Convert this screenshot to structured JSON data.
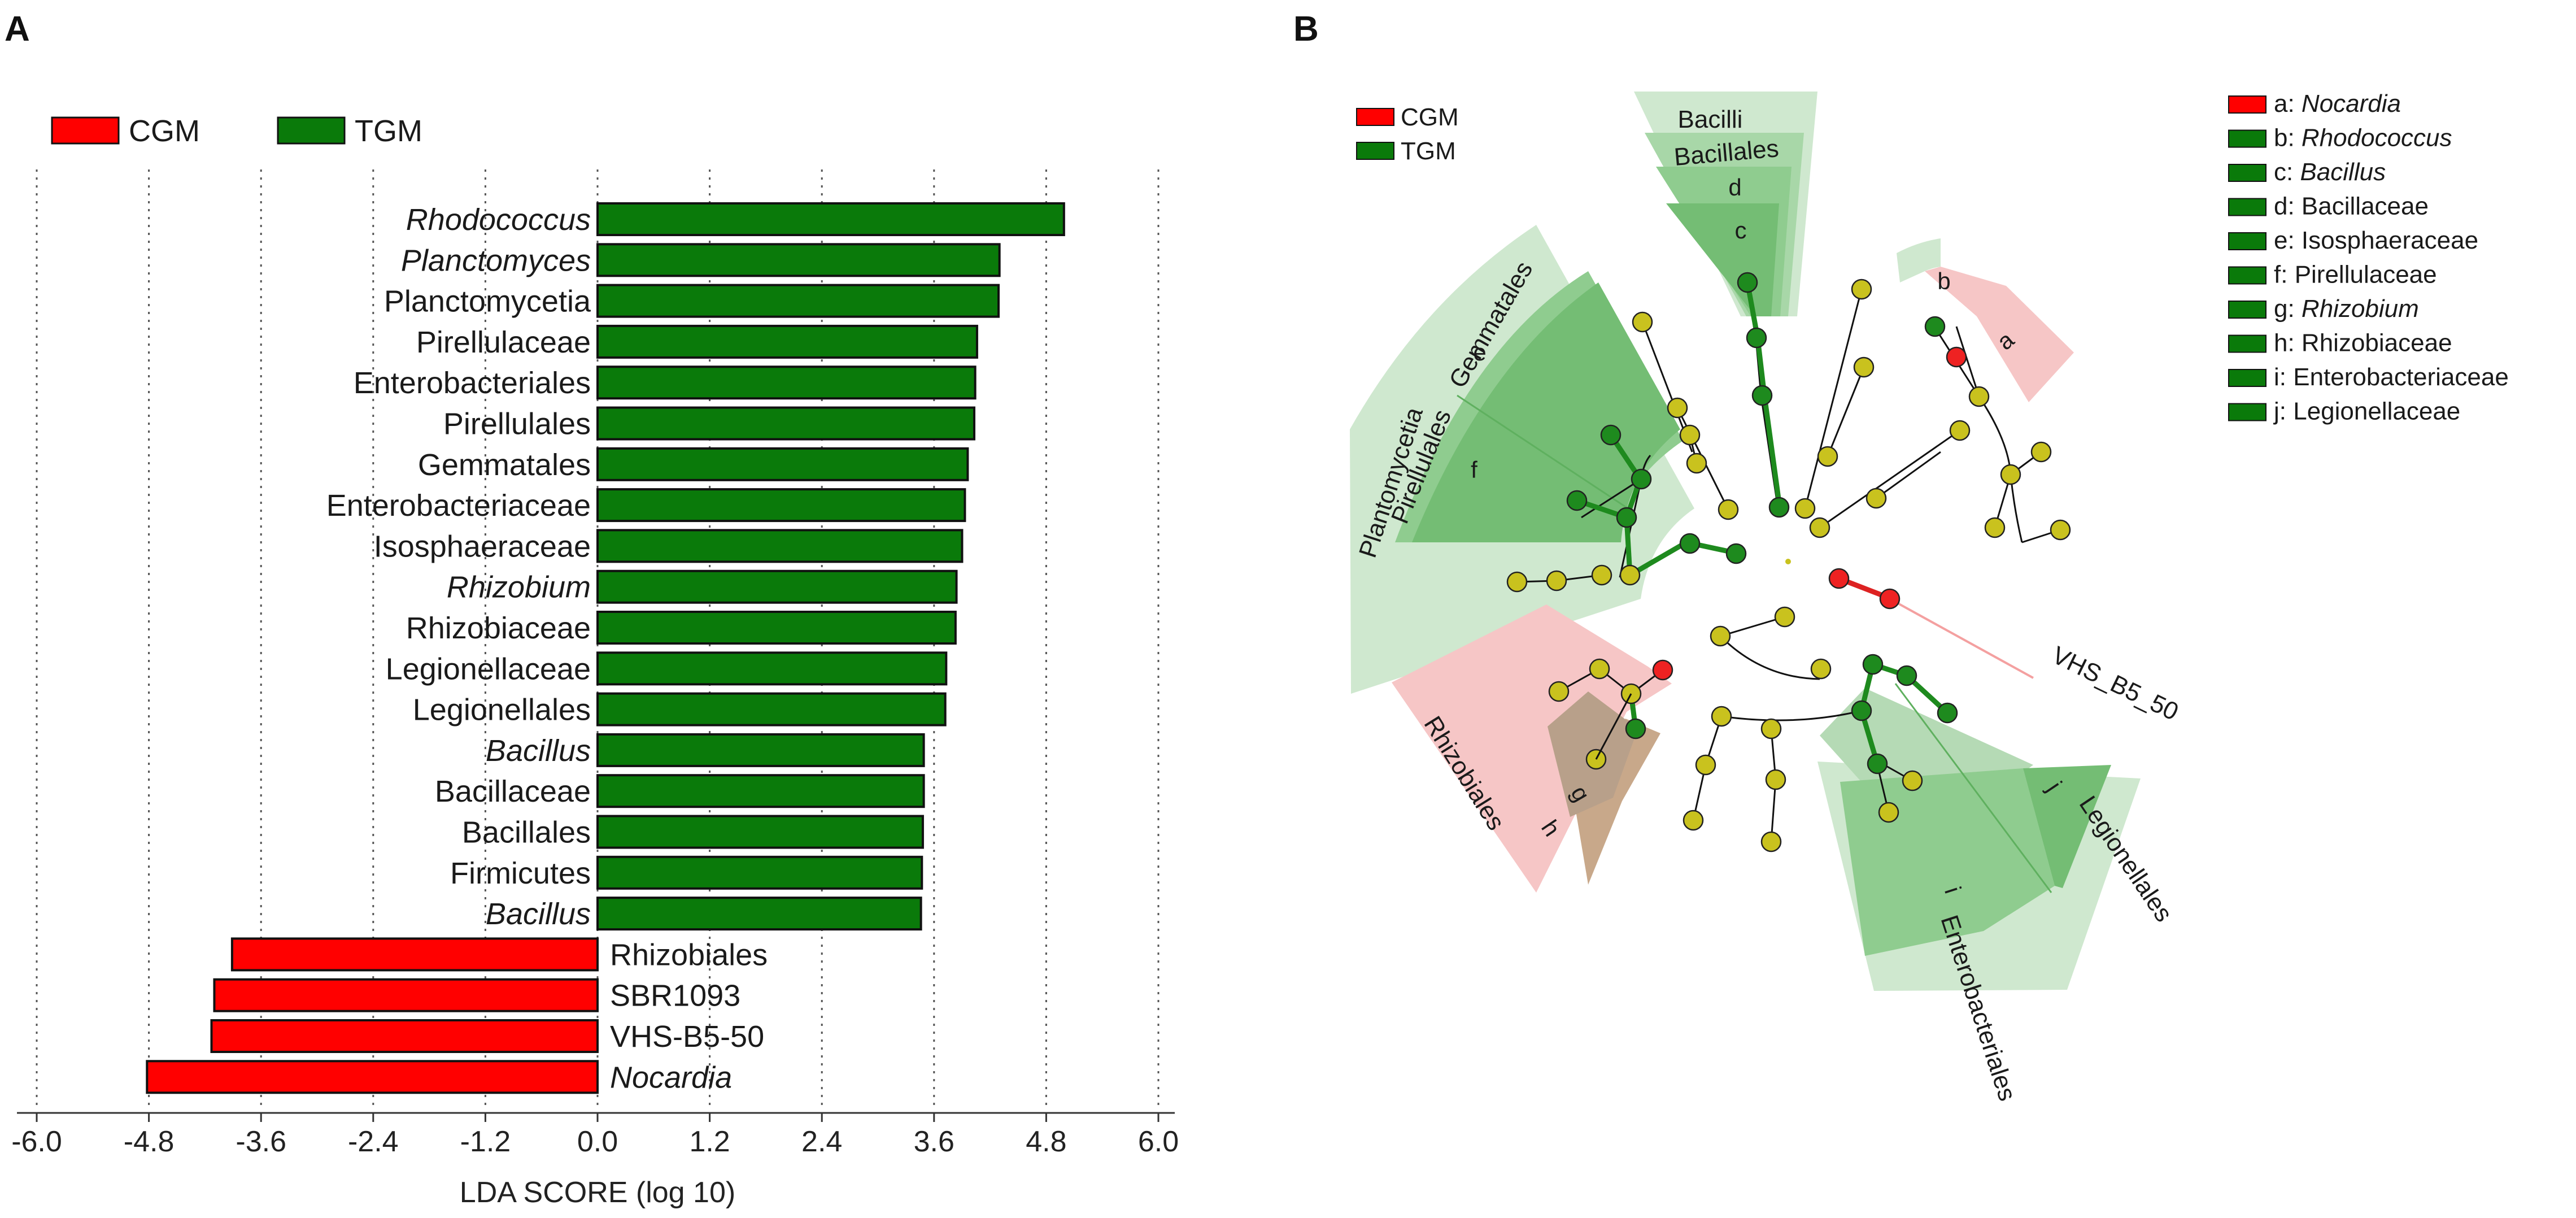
{
  "panel_a_letter": "A",
  "panel_b_letter": "B",
  "colors": {
    "CGM": "#ff0000",
    "TGM": "#0a7a0a",
    "bar_stroke": "#111111",
    "node_yellow": "#c9c21e",
    "node_green": "#1e8a1e",
    "node_red": "#ee2222"
  },
  "chart_data": [
    {
      "type": "bar",
      "orientation": "horizontal",
      "title": "",
      "xlabel": "LDA SCORE (log 10)",
      "ylabel": "",
      "xlim": [
        -6.0,
        6.0
      ],
      "xticks": [
        -6.0,
        -4.8,
        -3.6,
        -2.4,
        -1.2,
        0.0,
        1.2,
        2.4,
        3.6,
        4.8,
        6.0
      ],
      "xtick_labels": [
        "-6.0",
        "-4.8",
        "-3.6",
        "-2.4",
        "-1.2",
        "0.0",
        "1.2",
        "2.4",
        "3.6",
        "4.8",
        "6.0"
      ],
      "gridlines": "vertical dotted",
      "legend": [
        {
          "name": "CGM",
          "color": "#ff0000"
        },
        {
          "name": "TGM",
          "color": "#0a7a0a"
        }
      ],
      "categories": [
        "Rhodococcus",
        "Planctomyces",
        "Planctomycetia",
        "Pirellulaceae",
        "Enterobacteriales",
        "Pirellulales",
        "Gemmatales",
        "Enterobacteriaceae",
        "Isosphaeraceae",
        "Rhizobium",
        "Rhizobiaceae",
        "Legionellaceae",
        "Legionellales",
        "Bacillus",
        "Bacillaceae",
        "Bacillales",
        "Firmicutes",
        "Bacillus",
        "Rhizobiales",
        "SBR1093",
        "VHS-B5-50",
        "Nocardia"
      ],
      "italic": [
        true,
        true,
        false,
        false,
        false,
        false,
        false,
        false,
        false,
        true,
        false,
        false,
        false,
        true,
        false,
        false,
        false,
        true,
        false,
        false,
        false,
        true
      ],
      "groups": [
        "TGM",
        "TGM",
        "TGM",
        "TGM",
        "TGM",
        "TGM",
        "TGM",
        "TGM",
        "TGM",
        "TGM",
        "TGM",
        "TGM",
        "TGM",
        "TGM",
        "TGM",
        "TGM",
        "TGM",
        "TGM",
        "CGM",
        "CGM",
        "CGM",
        "CGM"
      ],
      "values": [
        4.99,
        4.3,
        4.29,
        4.06,
        4.04,
        4.03,
        3.96,
        3.93,
        3.9,
        3.84,
        3.83,
        3.73,
        3.72,
        3.49,
        3.49,
        3.48,
        3.47,
        3.46,
        -3.91,
        -4.1,
        -4.13,
        -4.82
      ]
    },
    {
      "type": "cladogram",
      "title": "",
      "legend_groups": [
        {
          "name": "CGM",
          "color": "#ff0000"
        },
        {
          "name": "TGM",
          "color": "#0a7a0a"
        }
      ],
      "clade_legend": [
        {
          "letter": "a",
          "name": "Nocardia",
          "italic": true,
          "group": "CGM"
        },
        {
          "letter": "b",
          "name": "Rhodococcus",
          "italic": true,
          "group": "TGM"
        },
        {
          "letter": "c",
          "name": "Bacillus",
          "italic": true,
          "group": "TGM"
        },
        {
          "letter": "d",
          "name": "Bacillaceae",
          "italic": false,
          "group": "TGM"
        },
        {
          "letter": "e",
          "name": "Isosphaeraceae",
          "italic": false,
          "group": "TGM"
        },
        {
          "letter": "f",
          "name": "Pirellulaceae",
          "italic": false,
          "group": "TGM"
        },
        {
          "letter": "g",
          "name": "Rhizobium",
          "italic": true,
          "group": "TGM"
        },
        {
          "letter": "h",
          "name": "Rhizobiaceae",
          "italic": false,
          "group": "TGM"
        },
        {
          "letter": "i",
          "name": "Enterobacteriaceae",
          "italic": false,
          "group": "TGM"
        },
        {
          "letter": "j",
          "name": "Legionellaceae",
          "italic": false,
          "group": "TGM"
        }
      ],
      "clade_labels": {
        "bacilli": "Bacilli",
        "bacillales": "Bacillales",
        "planctomycetia": "Plantomycetia",
        "pirellulales": "Pirellulales",
        "gemmatales": "Gemmatales",
        "rhizobiales": "Rhizobiales",
        "legionellales": "Legionellales",
        "enterobacteriales": "Enterobacteriales",
        "vhs": "VHS_B5_50"
      },
      "sector_letters": [
        "a",
        "b",
        "c",
        "d",
        "e",
        "f",
        "g",
        "h",
        "i",
        "j"
      ]
    }
  ]
}
